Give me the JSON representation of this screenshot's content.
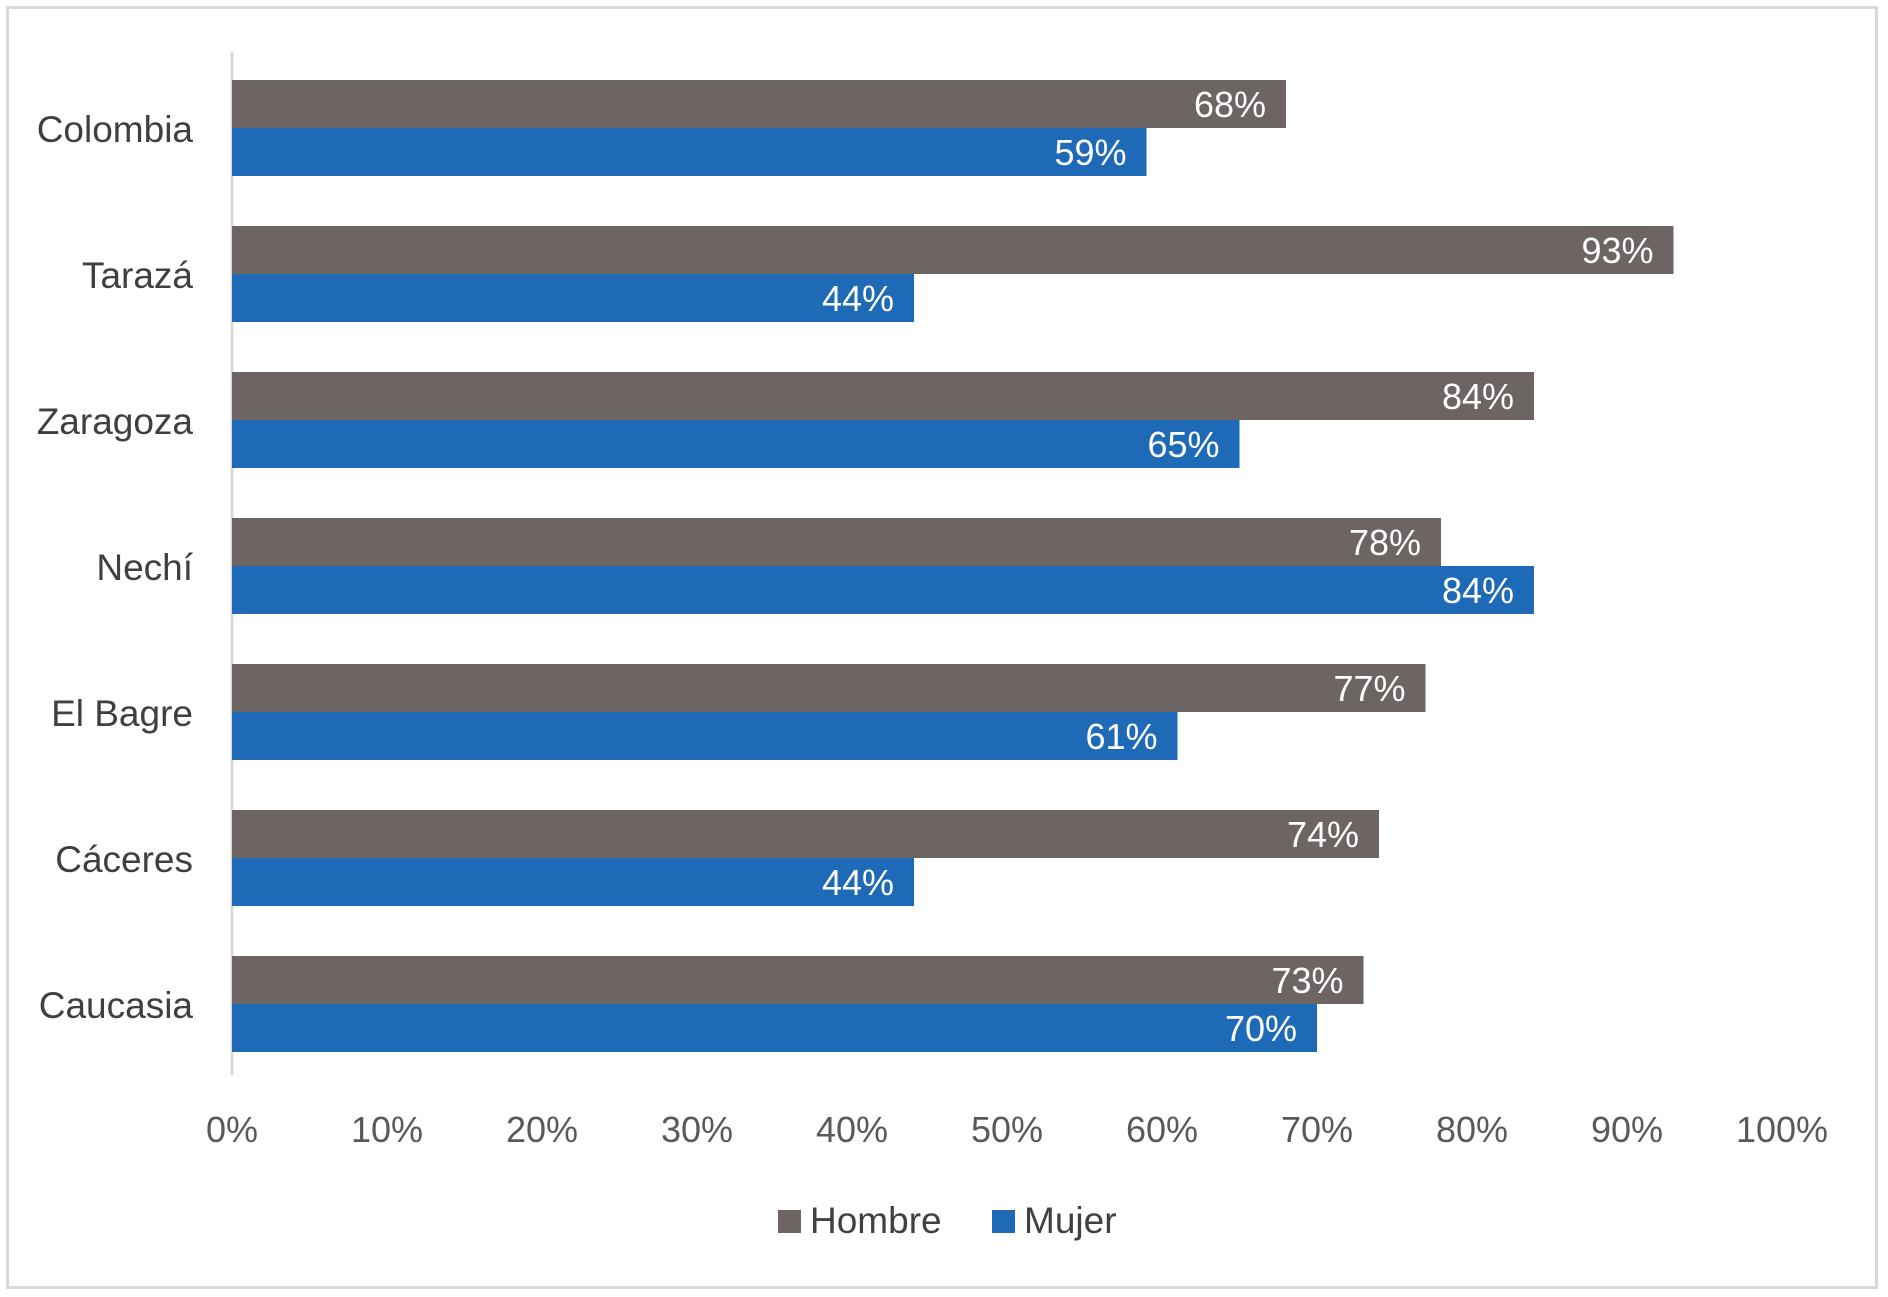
{
  "chart_data": {
    "type": "bar",
    "orientation": "horizontal",
    "categories": [
      "Colombia",
      "Tarazá",
      "Zaragoza",
      "Nechí",
      "El Bagre",
      "Cáceres",
      "Caucasia"
    ],
    "series": [
      {
        "name": "Hombre",
        "color": "#6d6563",
        "values": [
          68,
          93,
          84,
          78,
          77,
          74,
          73
        ]
      },
      {
        "name": "Mujer",
        "color": "#1f6ab7",
        "values": [
          59,
          44,
          65,
          84,
          61,
          44,
          70
        ]
      }
    ],
    "x_ticks": [
      "0%",
      "10%",
      "20%",
      "30%",
      "40%",
      "50%",
      "60%",
      "70%",
      "80%",
      "90%",
      "100%"
    ],
    "xlim": [
      0,
      100
    ],
    "value_suffix": "%",
    "grid": false,
    "legend_position": "bottom"
  }
}
